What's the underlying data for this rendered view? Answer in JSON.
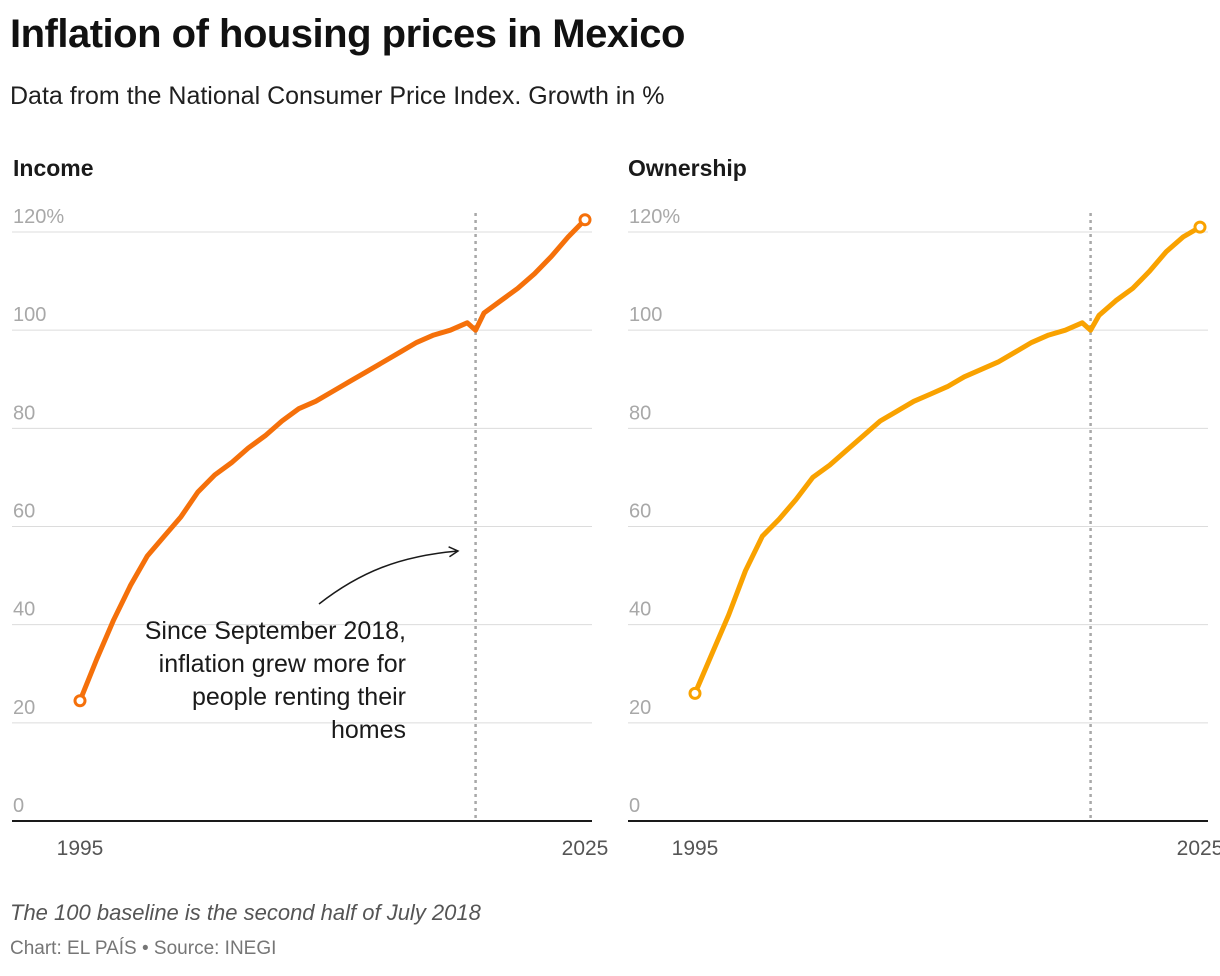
{
  "title": "Inflation of housing prices in Mexico",
  "subtitle": "Data from the National Consumer Price Index. Growth in %",
  "note": "The 100 baseline is the second half of July 2018",
  "source": "Chart: EL PAÍS • Source: INEGI",
  "annotation": {
    "lines": [
      "Since September 2018,",
      "inflation grew more for",
      "people renting their",
      "homes"
    ]
  },
  "chart_data": [
    {
      "type": "line",
      "title": "Income",
      "color": "#f5700a",
      "x_range": [
        1995,
        2025
      ],
      "x_ticks": [
        "1995",
        "2025"
      ],
      "ylim": [
        0,
        120
      ],
      "y_ticks": [
        "0",
        "20",
        "40",
        "60",
        "80",
        "100",
        "120%"
      ],
      "baseline_marker_x": 2018.5,
      "series": [
        {
          "name": "Income",
          "x": [
            1995,
            1996,
            1997,
            1998,
            1999,
            2000,
            2001,
            2002,
            2003,
            2004,
            2005,
            2006,
            2007,
            2008,
            2009,
            2010,
            2011,
            2012,
            2013,
            2014,
            2015,
            2016,
            2017,
            2018,
            2018.5,
            2019,
            2020,
            2021,
            2022,
            2023,
            2024,
            2025
          ],
          "values": [
            24.5,
            33,
            41,
            48,
            54,
            58,
            62,
            67,
            70.5,
            73,
            76,
            78.5,
            81.5,
            84,
            85.5,
            87.5,
            89.5,
            91.5,
            93.5,
            95.5,
            97.5,
            99,
            100,
            101.5,
            100,
            103.5,
            106,
            108.5,
            111.5,
            115,
            119,
            122.5
          ]
        }
      ]
    },
    {
      "type": "line",
      "title": "Ownership",
      "color": "#f9a200",
      "x_range": [
        1995,
        2025
      ],
      "x_ticks": [
        "1995",
        "2025"
      ],
      "ylim": [
        0,
        120
      ],
      "y_ticks": [
        "0",
        "20",
        "40",
        "60",
        "80",
        "100",
        "120%"
      ],
      "baseline_marker_x": 2018.5,
      "series": [
        {
          "name": "Ownership",
          "x": [
            1995,
            1996,
            1997,
            1998,
            1999,
            2000,
            2001,
            2002,
            2003,
            2004,
            2005,
            2006,
            2007,
            2008,
            2009,
            2010,
            2011,
            2012,
            2013,
            2014,
            2015,
            2016,
            2017,
            2018,
            2018.5,
            2019,
            2020,
            2021,
            2022,
            2023,
            2024,
            2025
          ],
          "values": [
            26,
            34,
            42,
            51,
            58,
            61.5,
            65.5,
            70,
            72.5,
            75.5,
            78.5,
            81.5,
            83.5,
            85.5,
            87,
            88.5,
            90.5,
            92,
            93.5,
            95.5,
            97.5,
            99,
            100,
            101.5,
            100,
            103,
            106,
            108.5,
            112,
            116,
            119,
            121
          ]
        }
      ]
    }
  ]
}
